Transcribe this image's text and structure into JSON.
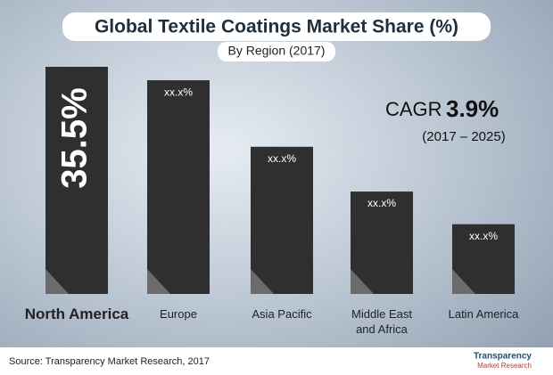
{
  "chart_data": {
    "type": "bar",
    "title": "Global Textile Coatings Market Share (%)",
    "subtitle": "By Region (2017)",
    "categories": [
      "North America",
      "Europe",
      "Asia Pacific",
      "Middle East and Africa",
      "Latin America"
    ],
    "values": [
      35.5,
      33.4,
      23.0,
      16.0,
      10.9
    ],
    "value_labels": [
      "35.5%",
      "xx.x%",
      "xx.x%",
      "xx.x%",
      "xx.x%"
    ],
    "color": "#2f2f2f",
    "cagr": {
      "label": "CAGR",
      "value_label": "3.9%",
      "period": "(2017 – 2025)"
    },
    "source": "Source: Transparency Market Research, 2017",
    "logo": [
      "Transparency",
      "Market Research"
    ]
  }
}
